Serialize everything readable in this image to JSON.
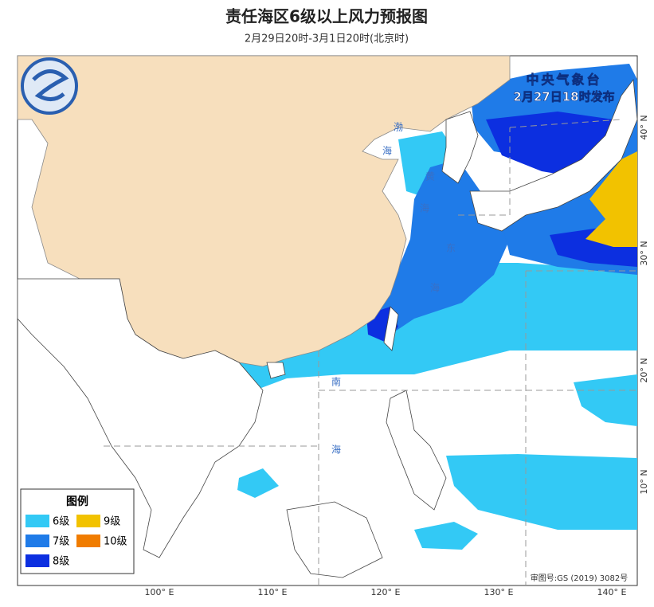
{
  "header": {
    "title": "责任海区6级以上风力预报图",
    "subtitle": "2月29日20时-3月1日20时(北京时)"
  },
  "issuer": {
    "name": "中央气象台",
    "time": "2月27日18时发布"
  },
  "legend": {
    "title": "图例",
    "items": [
      {
        "label": "6级",
        "color": "#33c9f5"
      },
      {
        "label": "9级",
        "color": "#f2c200"
      },
      {
        "label": "7级",
        "color": "#1f7be8"
      },
      {
        "label": "10级",
        "color": "#f07c00"
      },
      {
        "label": "8级",
        "color": "#0c2fe0"
      }
    ]
  },
  "axes": {
    "longitude": [
      "100° E",
      "110° E",
      "120° E",
      "130° E",
      "140° E"
    ],
    "latitude": [
      "10° N",
      "20° N",
      "30° N",
      "40° N"
    ]
  },
  "sea_labels": [
    "渤",
    "海",
    "黄",
    "海",
    "东",
    "海",
    "南",
    "海"
  ],
  "approval": "审图号:GS (2019) 3082号"
}
